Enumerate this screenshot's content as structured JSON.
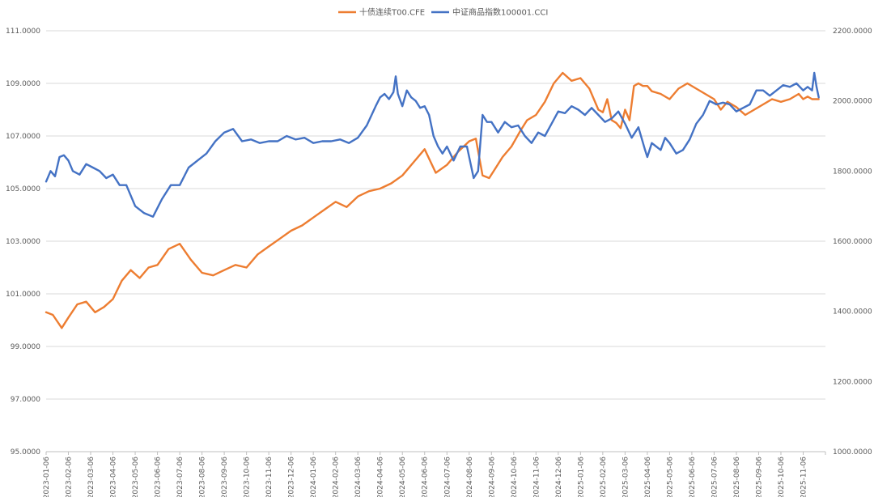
{
  "chart_data": {
    "type": "line",
    "title": "",
    "xlabel": "",
    "ylabel": "",
    "y2label": "",
    "legend_position": "top",
    "grid": true,
    "ylim": [
      95,
      111
    ],
    "y2lim": [
      1000,
      2200
    ],
    "yticks": [
      "95.0000",
      "97.0000",
      "99.0000",
      "101.0000",
      "103.0000",
      "105.0000",
      "107.0000",
      "109.0000",
      "111.0000"
    ],
    "y2ticks": [
      "1000.0000",
      "1200.0000",
      "1400.0000",
      "1600.0000",
      "1800.0000",
      "2000.0000",
      "2200.0000"
    ],
    "xticks": [
      "2023-01-06",
      "2023-02-06",
      "2023-03-06",
      "2023-04-06",
      "2023-05-06",
      "2023-06-06",
      "2023-07-06",
      "2023-08-06",
      "2023-09-06",
      "2023-10-06",
      "2023-11-06",
      "2023-12-06",
      "2024-01-06",
      "2024-02-06",
      "2024-03-06",
      "2024-04-06",
      "2024-05-06",
      "2024-06-06",
      "2024-07-06",
      "2024-08-06",
      "2024-09-06",
      "2024-10-06",
      "2024-11-06",
      "2024-12-06",
      "2025-01-06",
      "2025-02-06",
      "2025-03-06",
      "2025-04-06",
      "2025-05-06",
      "2025-06-06",
      "2025-07-06",
      "2025-08-06",
      "2025-09-06",
      "2025-10-06",
      "2025-11-06"
    ],
    "series": [
      {
        "name": "十债连续T00.CFE",
        "axis": "left",
        "color": "#ED7D31",
        "x": [
          0,
          0.3,
          0.7,
          1,
          1.4,
          1.8,
          2.2,
          2.6,
          3,
          3.4,
          3.8,
          4.2,
          4.6,
          5,
          5.5,
          6,
          6.5,
          7,
          7.5,
          8,
          8.5,
          9,
          9.5,
          10,
          10.5,
          11,
          11.5,
          12,
          12.5,
          13,
          13.5,
          14,
          14.5,
          15,
          15.5,
          16,
          16.5,
          17,
          17.5,
          18,
          18.5,
          19,
          19.3,
          19.6,
          19.9,
          20.2,
          20.5,
          20.7,
          20.9,
          21.1,
          21.3,
          21.6,
          22,
          22.4,
          22.8,
          23.2,
          23.6,
          24,
          24.4,
          24.8,
          25,
          25.2,
          25.4,
          25.6,
          25.8,
          26,
          26.2,
          26.4,
          26.6,
          26.8,
          27,
          27.2,
          27.6,
          28,
          28.4,
          28.8,
          29.2,
          29.6,
          30,
          30.3,
          30.6,
          31,
          31.4,
          31.8,
          32.2,
          32.6,
          33,
          33.4,
          33.8,
          34,
          34.2,
          34.4,
          34.6,
          34.7
        ],
        "values": [
          100.3,
          100.2,
          99.7,
          100.1,
          100.6,
          100.7,
          100.3,
          100.5,
          100.8,
          101.5,
          101.9,
          101.6,
          102.0,
          102.1,
          102.7,
          102.9,
          102.3,
          101.8,
          101.7,
          101.9,
          102.1,
          102.0,
          102.5,
          102.8,
          103.1,
          103.4,
          103.6,
          103.9,
          104.2,
          104.5,
          104.3,
          104.7,
          104.9,
          105.0,
          105.2,
          105.5,
          106.0,
          106.5,
          105.6,
          105.9,
          106.4,
          106.8,
          106.9,
          105.5,
          105.4,
          105.8,
          106.2,
          106.4,
          106.6,
          106.9,
          107.2,
          107.6,
          107.8,
          108.3,
          109.0,
          109.4,
          109.1,
          109.2,
          108.8,
          108.0,
          107.9,
          108.4,
          107.6,
          107.5,
          107.3,
          108.0,
          107.6,
          108.9,
          109.0,
          108.9,
          108.9,
          108.7,
          108.6,
          108.4,
          108.8,
          109.0,
          108.8,
          108.6,
          108.4,
          108.0,
          108.3,
          108.1,
          107.8,
          108.0,
          108.2,
          108.4,
          108.3,
          108.4,
          108.6,
          108.4,
          108.5,
          108.4,
          108.4,
          108.4
        ]
      },
      {
        "name": "中证商品指数100001.CCI",
        "axis": "right",
        "color": "#4472C4",
        "x": [
          0,
          0.2,
          0.4,
          0.6,
          0.8,
          1,
          1.2,
          1.5,
          1.8,
          2.1,
          2.4,
          2.7,
          3,
          3.3,
          3.6,
          4,
          4.4,
          4.8,
          5.2,
          5.6,
          6,
          6.4,
          6.8,
          7.2,
          7.6,
          8,
          8.4,
          8.8,
          9.2,
          9.6,
          10,
          10.4,
          10.8,
          11.2,
          11.6,
          12,
          12.4,
          12.8,
          13.2,
          13.6,
          14,
          14.4,
          14.8,
          15,
          15.2,
          15.4,
          15.6,
          15.7,
          15.8,
          16,
          16.2,
          16.4,
          16.6,
          16.8,
          17,
          17.2,
          17.4,
          17.6,
          17.8,
          18,
          18.3,
          18.6,
          18.9,
          19.2,
          19.4,
          19.6,
          19.8,
          20,
          20.3,
          20.6,
          20.9,
          21.2,
          21.5,
          21.8,
          22.1,
          22.4,
          22.7,
          23,
          23.3,
          23.6,
          23.9,
          24.2,
          24.5,
          24.8,
          25.1,
          25.4,
          25.7,
          26,
          26.3,
          26.6,
          26.9,
          27,
          27.2,
          27.4,
          27.6,
          27.8,
          28,
          28.3,
          28.6,
          28.9,
          29.2,
          29.5,
          29.8,
          30.1,
          30.4,
          30.7,
          31,
          31.3,
          31.6,
          31.9,
          32.2,
          32.5,
          32.8,
          33.1,
          33.4,
          33.7,
          34,
          34.2,
          34.4,
          34.5,
          34.6,
          34.7
        ],
        "values": [
          1770,
          1800,
          1785,
          1840,
          1845,
          1830,
          1800,
          1790,
          1820,
          1810,
          1800,
          1780,
          1790,
          1760,
          1760,
          1700,
          1680,
          1670,
          1720,
          1760,
          1760,
          1810,
          1830,
          1850,
          1885,
          1910,
          1920,
          1885,
          1890,
          1880,
          1885,
          1885,
          1900,
          1890,
          1895,
          1880,
          1885,
          1885,
          1890,
          1880,
          1895,
          1930,
          1985,
          2010,
          2020,
          2005,
          2025,
          2070,
          2020,
          1985,
          2030,
          2010,
          2000,
          1980,
          1985,
          1960,
          1900,
          1870,
          1850,
          1870,
          1830,
          1870,
          1870,
          1780,
          1800,
          1960,
          1940,
          1940,
          1910,
          1940,
          1925,
          1930,
          1900,
          1880,
          1910,
          1900,
          1935,
          1970,
          1965,
          1985,
          1975,
          1960,
          1980,
          1960,
          1940,
          1950,
          1970,
          1935,
          1895,
          1925,
          1860,
          1840,
          1880,
          1870,
          1860,
          1895,
          1880,
          1850,
          1860,
          1890,
          1935,
          1960,
          2000,
          1990,
          1995,
          1990,
          1970,
          1980,
          1990,
          2030,
          2030,
          2015,
          2030,
          2045,
          2040,
          2050,
          2030,
          2040,
          2030,
          2080,
          2040,
          2010
        ]
      }
    ]
  }
}
